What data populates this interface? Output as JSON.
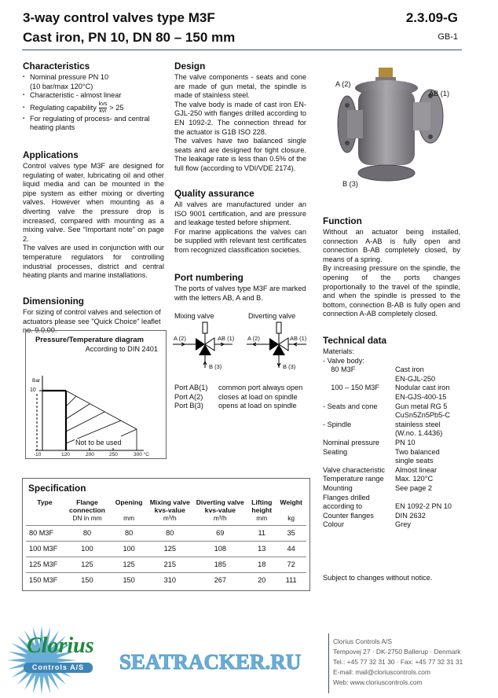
{
  "header": {
    "title1": "3-way control valves type M3F",
    "title2": "Cast iron, PN 10, DN 80 – 150 mm",
    "doc_no": "2.3.09-G",
    "page": "GB-1"
  },
  "characteristics": {
    "heading": "Characteristics",
    "items": [
      "Nominal pressure PN 10",
      "(10 bar/max 120°C)",
      "Characteristic - almost linear",
      "Regulating capability",
      "For regulating of process- and central heating plants"
    ],
    "frac_num": "kvs",
    "frac_den": "kvr",
    "frac_value": "> 25"
  },
  "applications": {
    "heading": "Applications",
    "p1": "Control valves type M3F are designed for regulating of water, lubricating oil and other liquid media and can be mounted in the pipe system as either mixing or diverting valves. However when mounting as a diverting valve the pressure drop is increased, compared with mounting as a mixing valve. See “Important note” on page 2.",
    "p2": "The valves are used in conjunction with our temperature regulators for controlling industrial processes, district and central heating plants and marine installations."
  },
  "dimensioning": {
    "heading": "Dimensioning",
    "text": "For sizing of control valves and selection of actuators please see \"Quick Choice\" leaflet no. 9.0.00."
  },
  "pt_diagram": {
    "title": "Pressure/Temperature diagram",
    "subtitle": "According to DIN 2401",
    "y_unit": "Bar",
    "y_tick": "10",
    "x_ticks": [
      "-10",
      "120",
      "200",
      "250",
      "300 °C"
    ],
    "area_label": "Not to be used"
  },
  "design": {
    "heading": "Design",
    "p1": "The valve components - seats and cone are made of gun metal, the spindle is made of stainless steel.",
    "p2": "The valve body is made of cast iron EN-GJL-250 with flanges drilled according to EN 1092-2. The connection thread for the actuator is  G1B ISO 228.",
    "p3": "The valves have two balanced single seats and are designed for tight closure. The leakage rate is less than 0.5% of the full flow (according to VDI/VDE 2174)."
  },
  "quality": {
    "heading": "Quality assurance",
    "p1": "All valves are manufactured under an ISO 9001 certification, and are pressure and leakage tested before shipment.",
    "p2": "For marine applications the valves can be supplied with relevant test certificates from recognized classification societies."
  },
  "ports": {
    "heading": "Port numbering",
    "text": "The ports of valves type M3F are marked with the letters AB, A and B.",
    "mixing": "Mixing valve",
    "diverting": "Diverting valve",
    "a": "A (2)",
    "ab": "AB (1)",
    "b": "B (3)",
    "list": [
      {
        "port": "Port AB(1)",
        "desc": "common port always open"
      },
      {
        "port": "Port A(2)",
        "desc": "closes at load on spindle"
      },
      {
        "port": "Port B(3)",
        "desc": "opens at load on spindle"
      }
    ]
  },
  "photo_labels": {
    "a": "A (2)",
    "ab": "AB (1)",
    "b": "B (3)"
  },
  "function": {
    "heading": "Function",
    "p1": "Without an actuator being installed, connection A-AB is fully open and connection B-AB completely closed, by means of a spring.",
    "p2": "By increasing pressure on the spindle, the opening of the ports changes proportionally to the travel of the spindle, and when the spindle is pressed to the bottom, connection B-AB is fully open and connection A-AB completely closed."
  },
  "technical": {
    "heading": "Technical data",
    "rows": [
      [
        "Materials:",
        ""
      ],
      [
        "- Valve body:",
        ""
      ],
      [
        "    80 M3F",
        "Cast iron"
      ],
      [
        "",
        "EN-GJL-250"
      ],
      [
        "    100 – 150 M3F",
        "Nodular cast iron"
      ],
      [
        "",
        "EN-GJS-400-15"
      ],
      [
        "- Seats and cone",
        "Gun metal RG 5"
      ],
      [
        "",
        "CuSn5Zn5Pb5-C"
      ],
      [
        "- Spindle",
        "stainless steel"
      ],
      [
        "",
        "(W.no. 1.4436)"
      ],
      [
        "Nominal pressure",
        "PN 10"
      ],
      [
        "Seating",
        "Two balanced"
      ],
      [
        "",
        "single seats"
      ],
      [
        "Valve characteristic",
        "Almost linear"
      ],
      [
        "Temperature range",
        "Max. 120°C"
      ],
      [
        "Mounting",
        "See page 2"
      ],
      [
        "Flanges drilled",
        ""
      ],
      [
        "according to",
        "EN 1092-2 PN 10"
      ],
      [
        "Counter flanges",
        "DIN 2632"
      ],
      [
        "Colour",
        "Grey"
      ]
    ],
    "notice": "Subject to changes without notice."
  },
  "specification": {
    "heading": "Specification",
    "columns": [
      "Type",
      "Flange connection",
      "Opening",
      "Mixing valve kvs-value",
      "Diverting valve kvs-value",
      "Lifting height",
      "Weight"
    ],
    "units": [
      "",
      "DN in mm",
      "mm",
      "m³/h",
      "m³/h",
      "mm",
      "kg"
    ],
    "rows": [
      [
        "80 M3F",
        "80",
        "80",
        "80",
        "69",
        "11",
        "35"
      ],
      [
        "100 M3F",
        "100",
        "100",
        "125",
        "108",
        "13",
        "44"
      ],
      [
        "125 M3F",
        "125",
        "125",
        "215",
        "185",
        "18",
        "72"
      ],
      [
        "150 M3F",
        "150",
        "150",
        "310",
        "267",
        "20",
        "111"
      ]
    ]
  },
  "footer": {
    "logo_text": "Clorius",
    "logo_sub": "Controls A/S",
    "watermark": "SEATRACKER.RU",
    "company": "Clorius Controls A/S",
    "address": "Tempovej 27 · DK-2750 Ballerup · Denmark",
    "phone": "Tel.: +45 77 32 31 30 · Fax: +45 77 32 31 31",
    "email": "E-mail: mail@cloriuscontrols.com",
    "web": "Web: www.cloriuscontrols.com"
  },
  "colors": {
    "rule": "#3d5068",
    "logo_green": "#1a8a3c",
    "logo_blue": "#3d86b8",
    "watermark": "#6aaed6"
  }
}
